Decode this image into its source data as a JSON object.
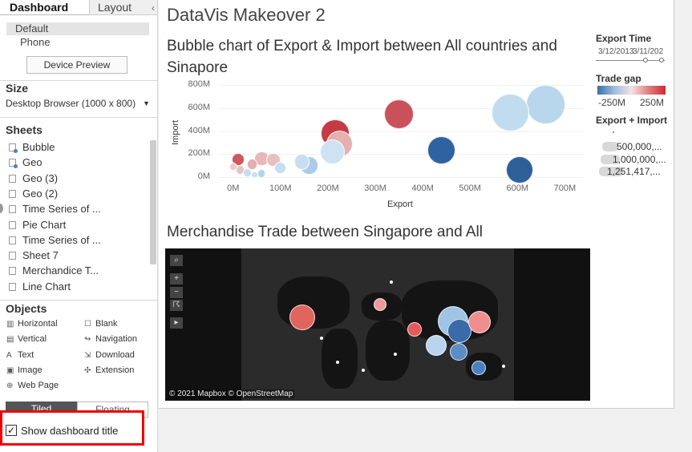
{
  "sidebar": {
    "tabs": [
      "Dashboard",
      "Layout"
    ],
    "collapse_glyph": "‹",
    "devices": [
      "Default",
      "Phone"
    ],
    "device_preview_label": "Device Preview",
    "size_heading": "Size",
    "size_value": "Desktop Browser (1000 x 800)",
    "sheets_heading": "Sheets",
    "sheets": [
      {
        "label": "Bubble",
        "icon": "worksheet-used-icon"
      },
      {
        "label": "Geo",
        "icon": "worksheet-used-icon"
      },
      {
        "label": "Geo (3)",
        "icon": "worksheet-icon"
      },
      {
        "label": "Geo (2)",
        "icon": "worksheet-icon"
      },
      {
        "label": "Time Series of ...",
        "icon": "worksheet-icon"
      },
      {
        "label": "Pie Chart",
        "icon": "worksheet-icon"
      },
      {
        "label": "Time Series of ...",
        "icon": "worksheet-icon"
      },
      {
        "label": "Sheet 7",
        "icon": "worksheet-icon"
      },
      {
        "label": "Merchandice T...",
        "icon": "worksheet-icon"
      },
      {
        "label": "Line Chart",
        "icon": "worksheet-icon"
      }
    ],
    "objects_heading": "Objects",
    "objects": [
      {
        "label": "Horizontal",
        "icon": "horizontal-container-icon",
        "glyph": "▥"
      },
      {
        "label": "Blank",
        "icon": "blank-icon",
        "glyph": "☐"
      },
      {
        "label": "Vertical",
        "icon": "vertical-container-icon",
        "glyph": "▤"
      },
      {
        "label": "Navigation",
        "icon": "navigation-icon",
        "glyph": "↬"
      },
      {
        "label": "Text",
        "icon": "text-icon",
        "glyph": "A"
      },
      {
        "label": "Download",
        "icon": "download-icon",
        "glyph": "⇲"
      },
      {
        "label": "Image",
        "icon": "image-icon",
        "glyph": "▣"
      },
      {
        "label": "Extension",
        "icon": "extension-icon",
        "glyph": "✣"
      },
      {
        "label": "Web Page",
        "icon": "web-page-icon",
        "glyph": "⊕"
      }
    ],
    "tiled_label": "Tiled",
    "floating_label": "Floating",
    "show_title_label": "Show dashboard title",
    "show_title_checked": "✓"
  },
  "dashboard": {
    "title": "DataVis Makeover 2",
    "bubble_title": "Bubble chart of Export & Import between All countries and Sinapore",
    "map_title": "Merchandise Trade between Singapore and All",
    "map_credit": "© 2021 Mapbox © OpenStreetMap",
    "map_controls": [
      "⌕",
      "+",
      "−",
      "☈",
      "▸"
    ]
  },
  "legend": {
    "export_time_title": "Export Time",
    "export_time_start": "3/12/2013",
    "export_time_end": "3/11/202",
    "trade_gap_title": "Trade gap",
    "trade_gap_min": "-250M",
    "trade_gap_max": "250M",
    "size_title": "Export + Import",
    "size_entries": [
      "500,000,...",
      "1,000,000,...",
      "1,251,417,..."
    ]
  },
  "chart_data": {
    "type": "scatter",
    "title": "Bubble chart of Export & Import between All countries and Sinapore",
    "xlabel": "Export",
    "ylabel": "Import",
    "x_ticks": [
      "0M",
      "100M",
      "200M",
      "300M",
      "400M",
      "500M",
      "600M",
      "700M"
    ],
    "y_ticks": [
      "0M",
      "200M",
      "400M",
      "600M",
      "800M"
    ],
    "xlim": [
      -30,
      740
    ],
    "ylim": [
      -50,
      830
    ],
    "size_field": "Export + Import",
    "color_field": "Trade gap",
    "points": [
      {
        "x": 660,
        "y": 630,
        "size": 1251,
        "color": "#b8d6ec"
      },
      {
        "x": 585,
        "y": 560,
        "size": 1100,
        "color": "#c2dcef"
      },
      {
        "x": 350,
        "y": 550,
        "size": 700,
        "color": "#c9525a"
      },
      {
        "x": 215,
        "y": 380,
        "size": 650,
        "color": "#c63a44"
      },
      {
        "x": 440,
        "y": 230,
        "size": 620,
        "color": "#2f62a0"
      },
      {
        "x": 605,
        "y": 60,
        "size": 600,
        "color": "#2f5f99"
      },
      {
        "x": 225,
        "y": 290,
        "size": 560,
        "color": "#e6b0b0"
      },
      {
        "x": 210,
        "y": 220,
        "size": 500,
        "color": "#cfe2f2"
      },
      {
        "x": 160,
        "y": 100,
        "size": 260,
        "color": "#aacce8"
      },
      {
        "x": 145,
        "y": 130,
        "size": 200,
        "color": "#c8def0"
      },
      {
        "x": 60,
        "y": 160,
        "size": 180,
        "color": "#e8b8b8"
      },
      {
        "x": 85,
        "y": 150,
        "size": 160,
        "color": "#e8c0c0"
      },
      {
        "x": 10,
        "y": 150,
        "size": 130,
        "color": "#cc5860"
      },
      {
        "x": 100,
        "y": 80,
        "size": 120,
        "color": "#c8def0"
      },
      {
        "x": 40,
        "y": 110,
        "size": 90,
        "color": "#e2aeae"
      },
      {
        "x": 15,
        "y": 60,
        "size": 70,
        "color": "#e6c4c4"
      },
      {
        "x": 30,
        "y": 40,
        "size": 60,
        "color": "#c8def0"
      },
      {
        "x": 60,
        "y": 30,
        "size": 55,
        "color": "#b5d3ea"
      },
      {
        "x": 0,
        "y": 90,
        "size": 50,
        "color": "#f0c8c8"
      },
      {
        "x": 45,
        "y": 20,
        "size": 40,
        "color": "#c8def0"
      }
    ]
  }
}
